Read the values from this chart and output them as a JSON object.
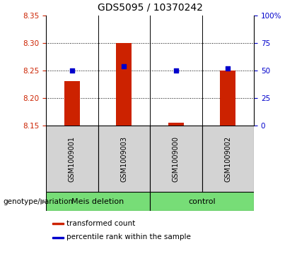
{
  "title": "GDS5095 / 10370242",
  "samples": [
    "GSM1009001",
    "GSM1009003",
    "GSM1009000",
    "GSM1009002"
  ],
  "bar_values": [
    8.23,
    8.3,
    8.155,
    8.25
  ],
  "bar_base": 8.15,
  "percentile_values": [
    50,
    54,
    50,
    52
  ],
  "ylim_left": [
    8.15,
    8.35
  ],
  "ylim_right": [
    0,
    100
  ],
  "yticks_left": [
    8.15,
    8.2,
    8.25,
    8.3,
    8.35
  ],
  "yticks_right": [
    0,
    25,
    50,
    75,
    100
  ],
  "ytick_labels_right": [
    "0",
    "25",
    "50",
    "75",
    "100%"
  ],
  "hgrid_lines": [
    8.2,
    8.25,
    8.3
  ],
  "bar_color": "#cc2200",
  "scatter_color": "#0000cc",
  "sample_bg_color": "#d3d3d3",
  "group_color": "#77dd77",
  "legend_bar_label": "transformed count",
  "legend_scatter_label": "percentile rank within the sample",
  "genotype_label": "genotype/variation",
  "title_fontsize": 10,
  "tick_fontsize": 7.5,
  "sample_fontsize": 7,
  "group_fontsize": 8,
  "legend_fontsize": 7.5,
  "bar_width": 0.3,
  "scatter_size": 20,
  "group_configs": [
    {
      "label": "Meis deletion",
      "xstart": -0.5,
      "xend": 1.5
    },
    {
      "label": "control",
      "xstart": 1.5,
      "xend": 3.5
    }
  ]
}
